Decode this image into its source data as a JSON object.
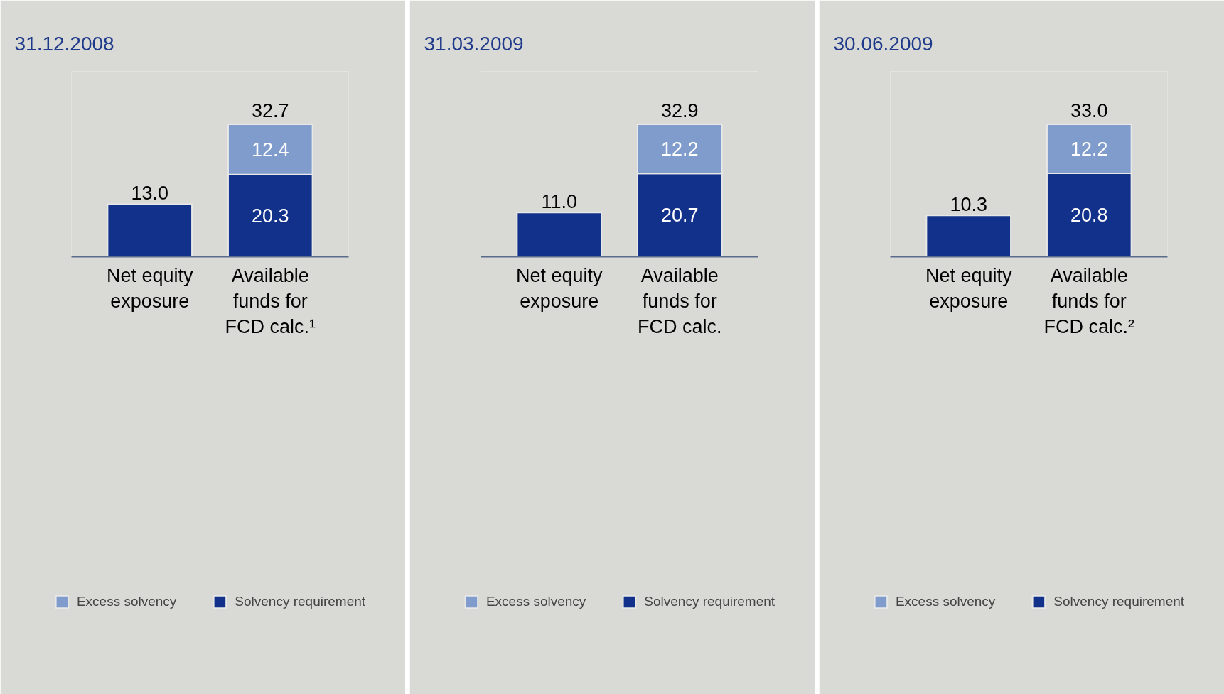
{
  "chart_data": [
    {
      "type": "bar",
      "title": "31.12.2008",
      "categories": [
        "Net equity exposure",
        "Available funds for FCD calc.¹"
      ],
      "stacked": true,
      "totals": [
        null,
        "32.7"
      ],
      "legend": "bottom",
      "tick_labels": "x",
      "series": [
        {
          "name": "Solvency requirement",
          "color": "#12318a",
          "values": [
            13.0,
            20.3
          ],
          "value_labels": [
            "13.0",
            "20.3"
          ]
        },
        {
          "name": "Excess solvency",
          "color": "#7f9ccc",
          "values": [
            null,
            12.4
          ],
          "value_labels": [
            null,
            "12.4"
          ]
        }
      ]
    },
    {
      "type": "bar",
      "title": "31.03.2009",
      "categories": [
        "Net equity exposure",
        "Available funds for FCD calc."
      ],
      "stacked": true,
      "totals": [
        null,
        "32.9"
      ],
      "legend": "bottom",
      "tick_labels": "x",
      "series": [
        {
          "name": "Solvency requirement",
          "color": "#12318a",
          "values": [
            11.0,
            20.7
          ],
          "value_labels": [
            "11.0",
            "20.7"
          ]
        },
        {
          "name": "Excess solvency",
          "color": "#7f9ccc",
          "values": [
            null,
            12.2
          ],
          "value_labels": [
            null,
            "12.2"
          ]
        }
      ]
    },
    {
      "type": "bar",
      "title": "30.06.2009",
      "categories": [
        "Net equity exposure",
        "Available funds for FCD calc.²"
      ],
      "stacked": true,
      "totals": [
        null,
        "33.0"
      ],
      "legend": "bottom",
      "tick_labels": "x",
      "series": [
        {
          "name": "Solvency requirement",
          "color": "#12318a",
          "values": [
            10.3,
            20.8
          ],
          "value_labels": [
            "10.3",
            "20.8"
          ]
        },
        {
          "name": "Excess solvency",
          "color": "#7f9ccc",
          "values": [
            null,
            12.2
          ],
          "value_labels": [
            null,
            "12.2"
          ]
        }
      ]
    }
  ]
}
